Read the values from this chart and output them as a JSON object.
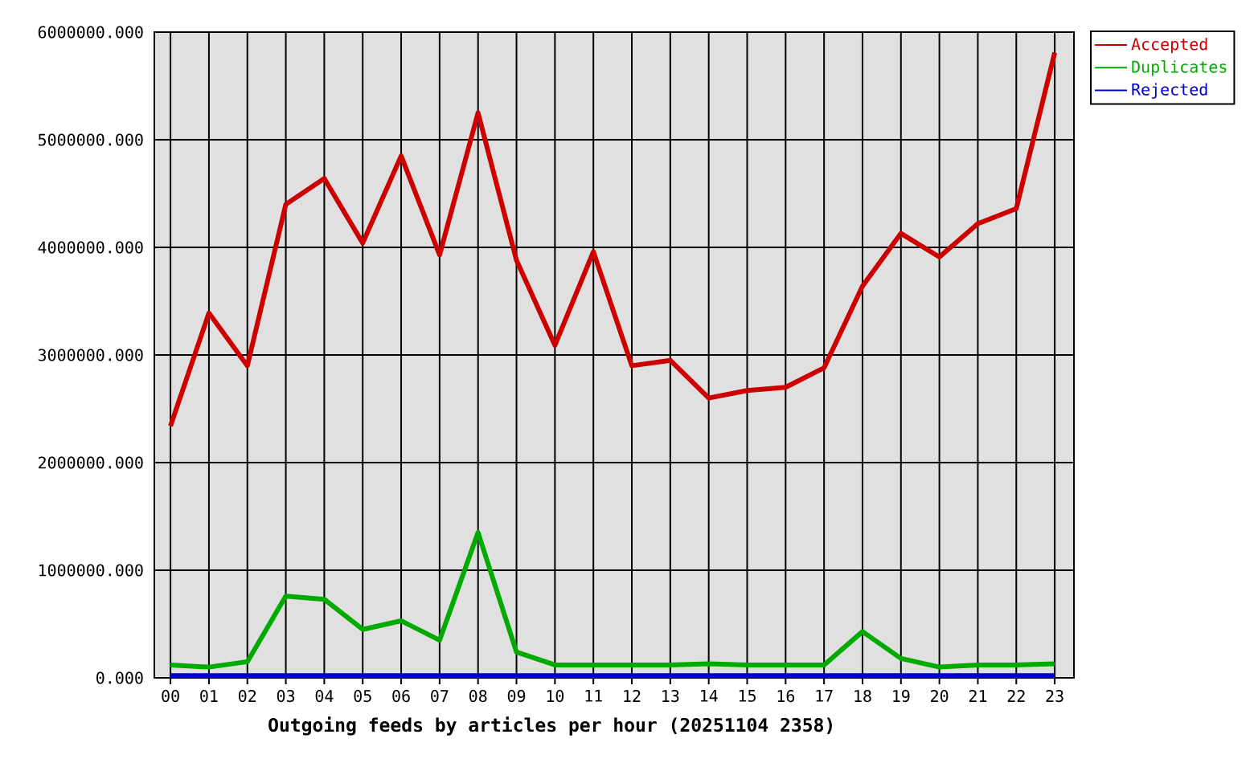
{
  "chart_data": {
    "type": "line",
    "xlabel": "Outgoing feeds by articles per hour (20251104 2358)",
    "categories": [
      "00",
      "01",
      "02",
      "03",
      "04",
      "05",
      "06",
      "07",
      "08",
      "09",
      "10",
      "11",
      "12",
      "13",
      "14",
      "15",
      "16",
      "17",
      "18",
      "19",
      "20",
      "21",
      "22",
      "23"
    ],
    "series": [
      {
        "name": "Accepted",
        "color": "#cc0000",
        "values": [
          2340000,
          3390000,
          2900000,
          4400000,
          4640000,
          4040000,
          4850000,
          3930000,
          5250000,
          3880000,
          3090000,
          3960000,
          2900000,
          2950000,
          2600000,
          2670000,
          2700000,
          2880000,
          3640000,
          4130000,
          3910000,
          4220000,
          4360000,
          5810000
        ]
      },
      {
        "name": "Duplicates",
        "color": "#00aa00",
        "values": [
          120000,
          100000,
          150000,
          760000,
          730000,
          450000,
          530000,
          350000,
          1350000,
          240000,
          120000,
          120000,
          120000,
          120000,
          130000,
          120000,
          120000,
          120000,
          430000,
          180000,
          100000,
          120000,
          120000,
          130000
        ]
      },
      {
        "name": "Rejected",
        "color": "#0000cc",
        "values": [
          20000,
          20000,
          20000,
          20000,
          20000,
          20000,
          20000,
          20000,
          20000,
          20000,
          20000,
          20000,
          20000,
          20000,
          20000,
          20000,
          20000,
          20000,
          20000,
          20000,
          20000,
          20000,
          20000,
          20000
        ]
      }
    ],
    "ylim": [
      0,
      6000000
    ],
    "yticks": [
      {
        "value": 0,
        "label": "0.000"
      },
      {
        "value": 1000000,
        "label": "1000000.000"
      },
      {
        "value": 2000000,
        "label": "2000000.000"
      },
      {
        "value": 3000000,
        "label": "3000000.000"
      },
      {
        "value": 4000000,
        "label": "4000000.000"
      },
      {
        "value": 5000000,
        "label": "5000000.000"
      },
      {
        "value": 6000000,
        "label": "6000000.000"
      }
    ],
    "grid": true,
    "legend": "top right",
    "line_style": "solid"
  }
}
